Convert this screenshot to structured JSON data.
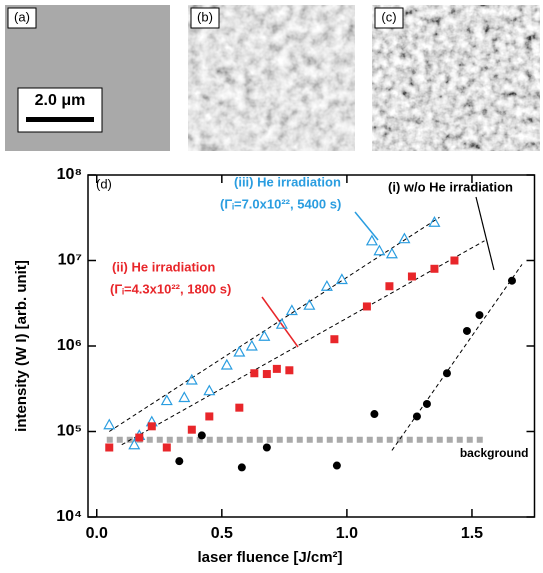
{
  "panels": [
    {
      "label": "(a)"
    },
    {
      "label": "(b)"
    },
    {
      "label": "(c)"
    }
  ],
  "scale_bar": "2.0 μm",
  "chart_data": {
    "type": "scatter",
    "panel_label": "(d)",
    "x_label": "laser fluence [J/cm²]",
    "y_label": "intensity (W I) [arb. unit]",
    "xlim": [
      -0.035,
      1.75
    ],
    "xticks": [
      {
        "value": 0,
        "label": "0.0"
      },
      0.5,
      {
        "value": 1,
        "label": "1.0"
      },
      1.5
    ],
    "ylim": [
      10000,
      100000000
    ],
    "yticks": [
      {
        "value": 10000,
        "label": "10⁴"
      },
      {
        "value": 100000,
        "label": "10⁵"
      },
      {
        "value": 1000000,
        "label": "10⁶"
      },
      {
        "value": 10000000,
        "label": "10⁷"
      },
      {
        "value": 100000000,
        "label": "10⁸"
      }
    ],
    "log_y": true,
    "series": [
      {
        "marker": "triangle",
        "color": "#2a9de0",
        "x": [
          0.05,
          0.15,
          0.17,
          0.22,
          0.28,
          0.35,
          0.38,
          0.45,
          0.52,
          0.57,
          0.62,
          0.67,
          0.74,
          0.78,
          0.85,
          0.92,
          0.98,
          1.1,
          1.13,
          1.18,
          1.23,
          1.35
        ],
        "values": [
          120000,
          70000,
          90000,
          130000,
          230000,
          250000,
          400000,
          300000,
          600000,
          850000,
          1000000,
          1300000,
          1800000,
          2600000,
          3000000,
          5000000,
          6000000,
          17000000,
          13000000,
          12000000,
          18000000,
          28000000
        ]
      },
      {
        "marker": "square",
        "color": "#e8262a",
        "x": [
          0.05,
          0.17,
          0.22,
          0.28,
          0.38,
          0.45,
          0.57,
          0.63,
          0.68,
          0.72,
          0.77,
          0.95,
          1.08,
          1.17,
          1.26,
          1.35,
          1.43
        ],
        "values": [
          65000,
          85000,
          115000,
          65000,
          105000,
          150000,
          190000,
          480000,
          470000,
          540000,
          520000,
          1200000,
          2900000,
          5000000,
          6500000,
          8000000,
          10000000
        ]
      },
      {
        "marker": "circle",
        "color": "#000000",
        "x": [
          0.33,
          0.42,
          0.58,
          0.68,
          0.96,
          1.11,
          1.28,
          1.32,
          1.4,
          1.48,
          1.53,
          1.66
        ],
        "values": [
          45000,
          90000,
          38000,
          65000,
          40000,
          160000,
          150000,
          210000,
          480000,
          1500000,
          2300000,
          5800000
        ]
      }
    ],
    "fit_lines": [
      {
        "x": [
          0.05,
          1.37
        ],
        "values": [
          100000,
          32000000
        ]
      },
      {
        "x": [
          0.1,
          1.55
        ],
        "values": [
          70000,
          17000000
        ]
      },
      {
        "x": [
          1.18,
          1.7
        ],
        "values": [
          60000,
          9000000
        ]
      }
    ],
    "background": {
      "text": "background",
      "value": 80000,
      "x": [
        0.04,
        1.55
      ]
    },
    "annotations": [
      {
        "text": "(iii) He irradiation",
        "text2": "(Γᵢ=7.0x10²², 5400 s)",
        "color": "#2a9de0"
      },
      {
        "text": "(ii) He irradiation",
        "text2": "(Γᵢ=4.3x10²², 1800 s)",
        "color": "#e8262a"
      },
      {
        "text": "(i) w/o He irradiation",
        "color": "#000000"
      }
    ]
  }
}
